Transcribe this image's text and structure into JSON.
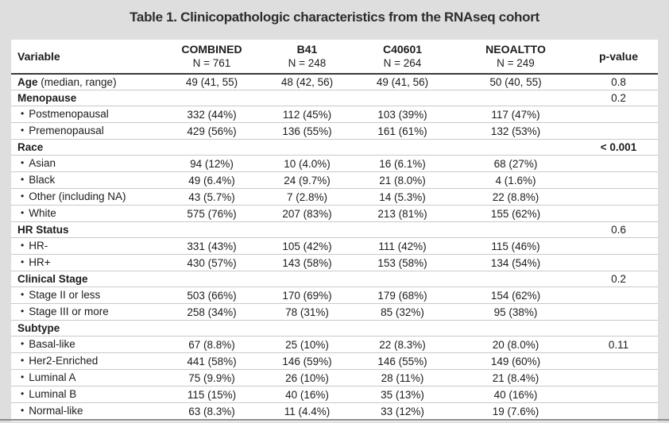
{
  "title": "Table 1. Clinicopathologic characteristics from the RNAseq cohort",
  "colors": {
    "background": "#dedede",
    "panel": "#ffffff",
    "text": "#1c1c1c",
    "row_line": "#c9c9c9",
    "header_line": "#3a3a3a",
    "bottom_rule": "#8c8c8c"
  },
  "table": {
    "bullet": "•",
    "columns": [
      {
        "label": "Variable",
        "sub": ""
      },
      {
        "label": "COMBINED",
        "sub": "N = 761"
      },
      {
        "label": "B41",
        "sub": "N = 248"
      },
      {
        "label": "C40601",
        "sub": "N = 264"
      },
      {
        "label": "NEOALTTO",
        "sub": "N = 249"
      },
      {
        "label": "p-value",
        "sub": ""
      }
    ],
    "rows": [
      {
        "kind": "variable",
        "label_bold": "Age",
        "label_rest": " (median, range)",
        "values": [
          "49 (41, 55)",
          "48 (42, 56)",
          "49 (41, 56)",
          "50 (40, 55)"
        ],
        "p": "0.8",
        "p_bold": false
      },
      {
        "kind": "section",
        "label_bold": "Menopause",
        "label_rest": "",
        "values": [
          "",
          "",
          "",
          ""
        ],
        "p": "0.2",
        "p_bold": false
      },
      {
        "kind": "item",
        "label_bold": "",
        "label_rest": "Postmenopausal",
        "values": [
          "332 (44%)",
          "112 (45%)",
          "103 (39%)",
          "117 (47%)"
        ],
        "p": "",
        "p_bold": false
      },
      {
        "kind": "item",
        "label_bold": "",
        "label_rest": "Premenopausal",
        "values": [
          "429 (56%)",
          "136 (55%)",
          "161 (61%)",
          "132 (53%)"
        ],
        "p": "",
        "p_bold": false
      },
      {
        "kind": "section",
        "label_bold": "Race",
        "label_rest": "",
        "values": [
          "",
          "",
          "",
          ""
        ],
        "p": "< 0.001",
        "p_bold": true
      },
      {
        "kind": "item",
        "label_bold": "",
        "label_rest": "Asian",
        "values": [
          "94 (12%)",
          "10 (4.0%)",
          "16 (6.1%)",
          "68 (27%)"
        ],
        "p": "",
        "p_bold": false
      },
      {
        "kind": "item",
        "label_bold": "",
        "label_rest": "Black",
        "values": [
          "49 (6.4%)",
          "24 (9.7%)",
          "21 (8.0%)",
          "4 (1.6%)"
        ],
        "p": "",
        "p_bold": false
      },
      {
        "kind": "item",
        "label_bold": "",
        "label_rest": "Other (including NA)",
        "values": [
          "43 (5.7%)",
          "7 (2.8%)",
          "14 (5.3%)",
          "22 (8.8%)"
        ],
        "p": "",
        "p_bold": false
      },
      {
        "kind": "item",
        "label_bold": "",
        "label_rest": "White",
        "values": [
          "575 (76%)",
          "207 (83%)",
          "213 (81%)",
          "155 (62%)"
        ],
        "p": "",
        "p_bold": false
      },
      {
        "kind": "section",
        "label_bold": "HR Status",
        "label_rest": "",
        "values": [
          "",
          "",
          "",
          ""
        ],
        "p": "0.6",
        "p_bold": false
      },
      {
        "kind": "item",
        "label_bold": "",
        "label_rest": "HR-",
        "values": [
          "331 (43%)",
          "105 (42%)",
          "111 (42%)",
          "115 (46%)"
        ],
        "p": "",
        "p_bold": false
      },
      {
        "kind": "item",
        "label_bold": "",
        "label_rest": "HR+",
        "values": [
          "430 (57%)",
          "143 (58%)",
          "153 (58%)",
          "134 (54%)"
        ],
        "p": "",
        "p_bold": false
      },
      {
        "kind": "section",
        "label_bold": "Clinical Stage",
        "label_rest": "",
        "values": [
          "",
          "",
          "",
          ""
        ],
        "p": "0.2",
        "p_bold": false
      },
      {
        "kind": "item",
        "label_bold": "",
        "label_rest": "Stage II or less",
        "values": [
          "503 (66%)",
          "170 (69%)",
          "179 (68%)",
          "154 (62%)"
        ],
        "p": "",
        "p_bold": false
      },
      {
        "kind": "item",
        "label_bold": "",
        "label_rest": "Stage III or more",
        "values": [
          "258 (34%)",
          "78 (31%)",
          "85 (32%)",
          "95 (38%)"
        ],
        "p": "",
        "p_bold": false
      },
      {
        "kind": "section",
        "label_bold": "Subtype",
        "label_rest": "",
        "values": [
          "",
          "",
          "",
          ""
        ],
        "p": "",
        "p_bold": false
      },
      {
        "kind": "item",
        "label_bold": "",
        "label_rest": "Basal-like",
        "values": [
          "67 (8.8%)",
          "25 (10%)",
          "22 (8.3%)",
          "20 (8.0%)"
        ],
        "p": "0.11",
        "p_bold": false
      },
      {
        "kind": "item",
        "label_bold": "",
        "label_rest": "Her2-Enriched",
        "values": [
          "441 (58%)",
          "146 (59%)",
          "146 (55%)",
          "149 (60%)"
        ],
        "p": "",
        "p_bold": false
      },
      {
        "kind": "item",
        "label_bold": "",
        "label_rest": "Luminal A",
        "values": [
          "75 (9.9%)",
          "26 (10%)",
          "28 (11%)",
          "21 (8.4%)"
        ],
        "p": "",
        "p_bold": false
      },
      {
        "kind": "item",
        "label_bold": "",
        "label_rest": "Luminal B",
        "values": [
          "115 (15%)",
          "40 (16%)",
          "35 (13%)",
          "40 (16%)"
        ],
        "p": "",
        "p_bold": false
      },
      {
        "kind": "item",
        "label_bold": "",
        "label_rest": "Normal-like",
        "values": [
          "63 (8.3%)",
          "11 (4.4%)",
          "33 (12%)",
          "19 (7.6%)"
        ],
        "p": "",
        "p_bold": false
      }
    ]
  }
}
